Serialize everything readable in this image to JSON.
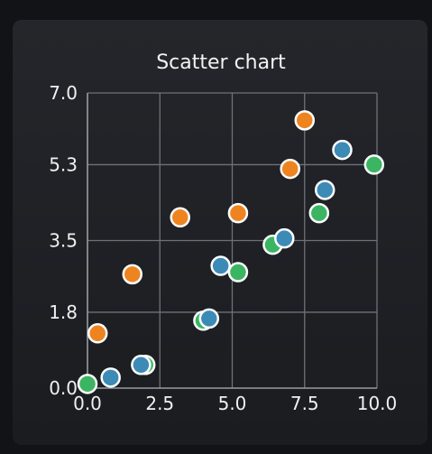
{
  "chart_data": {
    "type": "scatter",
    "title": "Scatter chart",
    "xlabel": "",
    "ylabel": "",
    "xlim": [
      0,
      10
    ],
    "ylim": [
      0,
      7
    ],
    "x_ticks": [
      "0.0",
      "2.5",
      "5.0",
      "7.5",
      "10.0"
    ],
    "y_ticks": [
      "0.0",
      "1.8",
      "3.5",
      "5.3",
      "7.0"
    ],
    "grid": true,
    "legend": "none",
    "series": [
      {
        "color": "#3cb563",
        "points": [
          {
            "x": 0.0,
            "y": 0.1
          },
          {
            "x": 2.0,
            "y": 0.55
          },
          {
            "x": 4.0,
            "y": 1.6
          },
          {
            "x": 5.2,
            "y": 2.75
          },
          {
            "x": 6.4,
            "y": 3.4
          },
          {
            "x": 8.0,
            "y": 4.15
          },
          {
            "x": 9.9,
            "y": 5.3
          }
        ]
      },
      {
        "color": "#3c8bb6",
        "points": [
          {
            "x": 0.8,
            "y": 0.25
          },
          {
            "x": 1.85,
            "y": 0.55
          },
          {
            "x": 4.2,
            "y": 1.65
          },
          {
            "x": 4.6,
            "y": 2.9
          },
          {
            "x": 6.8,
            "y": 3.55
          },
          {
            "x": 8.2,
            "y": 4.7
          },
          {
            "x": 8.8,
            "y": 5.65
          }
        ]
      },
      {
        "color": "#ee8420",
        "points": [
          {
            "x": 0.35,
            "y": 1.3
          },
          {
            "x": 1.55,
            "y": 2.7
          },
          {
            "x": 3.2,
            "y": 4.05
          },
          {
            "x": 5.2,
            "y": 4.15
          },
          {
            "x": 7.0,
            "y": 5.2
          },
          {
            "x": 7.5,
            "y": 6.35
          }
        ]
      }
    ]
  }
}
